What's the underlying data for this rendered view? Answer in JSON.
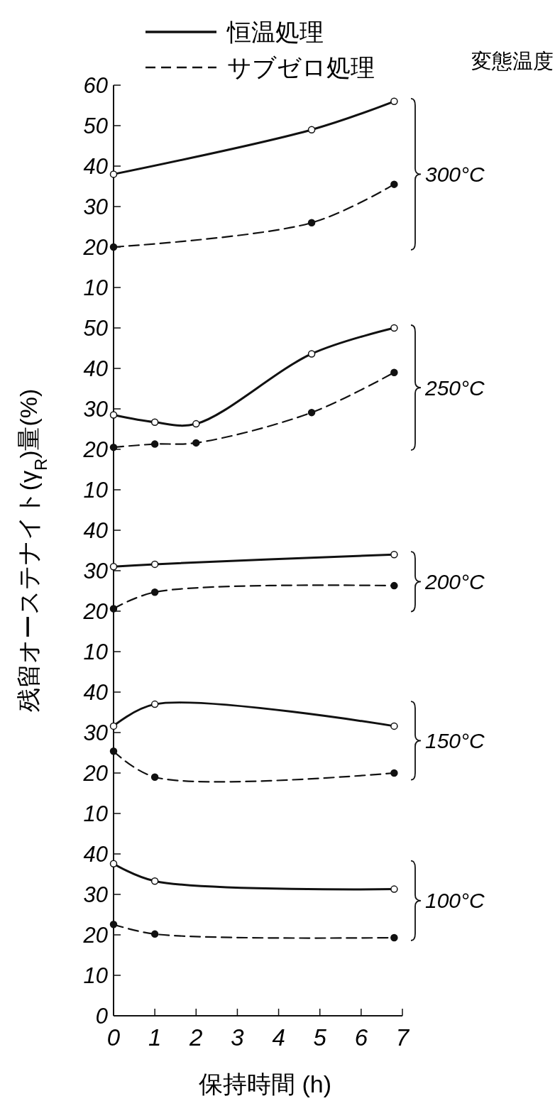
{
  "chart_data": [
    {
      "type": "line",
      "annotations": [
        "300°C",
        "変態温度"
      ],
      "x": [
        0,
        4.8,
        6.8
      ],
      "xlim": [
        0,
        7
      ],
      "ylim": [
        10,
        60
      ],
      "yticks": [
        10,
        20,
        30,
        40,
        50,
        60
      ],
      "tick_labels": "y",
      "legend": "top",
      "marker": "circle",
      "series": [
        {
          "name": "恒温処理",
          "color": "#111111",
          "line_style": "solid",
          "values": [
            38,
            49,
            56
          ]
        },
        {
          "name": "サブゼロ処理",
          "color": "#111111",
          "line_style": "dashed",
          "values": [
            20,
            26,
            35.5
          ]
        }
      ]
    },
    {
      "type": "line",
      "annotations": [
        "250°C"
      ],
      "x": [
        0,
        1,
        2,
        4.8,
        6.8
      ],
      "xlim": [
        0,
        7
      ],
      "ylim": [
        10,
        50
      ],
      "yticks": [
        10,
        20,
        30,
        40,
        50
      ],
      "tick_labels": "y",
      "marker": "circle",
      "series": [
        {
          "color": "#111111",
          "line_style": "solid",
          "values": [
            28.5,
            26.7,
            26.3,
            43.6,
            50
          ]
        },
        {
          "color": "#111111",
          "line_style": "dashed",
          "values": [
            20.5,
            21.3,
            21.6,
            29.1,
            39
          ]
        }
      ]
    },
    {
      "type": "line",
      "annotations": [
        "200°C"
      ],
      "ylabel": "残留オーステナイト(γ$_{R}$)量(%)",
      "x": [
        0,
        1,
        6.8
      ],
      "xlim": [
        0,
        7
      ],
      "ylim": [
        10,
        40
      ],
      "yticks": [
        10,
        20,
        30,
        40
      ],
      "tick_labels": "y",
      "marker": "circle",
      "series": [
        {
          "color": "#111111",
          "line_style": "solid",
          "values": [
            31,
            31.6,
            34
          ]
        },
        {
          "color": "#111111",
          "line_style": "dashed",
          "values": [
            20.6,
            24.7,
            26.3
          ]
        }
      ]
    },
    {
      "type": "line",
      "annotations": [
        "150°C"
      ],
      "x": [
        0,
        1,
        6.8
      ],
      "xlim": [
        0,
        7
      ],
      "ylim": [
        10,
        40
      ],
      "yticks": [
        10,
        20,
        30,
        40
      ],
      "tick_labels": "y",
      "marker": "circle",
      "series": [
        {
          "color": "#111111",
          "line_style": "solid",
          "values": [
            31.6,
            37,
            31.6
          ]
        },
        {
          "color": "#111111",
          "line_style": "dashed",
          "values": [
            25.4,
            19,
            20
          ]
        }
      ]
    },
    {
      "type": "line",
      "annotations": [
        "100°C"
      ],
      "xlabel": "保持時間 (h)",
      "x": [
        0,
        1,
        6.8
      ],
      "xlim": [
        0,
        7
      ],
      "xticks": [
        0,
        1,
        2,
        3,
        4,
        5,
        6,
        7
      ],
      "ylim": [
        0,
        40
      ],
      "yticks": [
        0,
        10,
        20,
        30,
        40
      ],
      "marker": "circle",
      "series": [
        {
          "color": "#111111",
          "line_style": "solid",
          "values": [
            37.6,
            33.3,
            31.3
          ]
        },
        {
          "color": "#111111",
          "line_style": "dashed",
          "values": [
            22.6,
            20.2,
            19.3
          ]
        }
      ]
    }
  ]
}
